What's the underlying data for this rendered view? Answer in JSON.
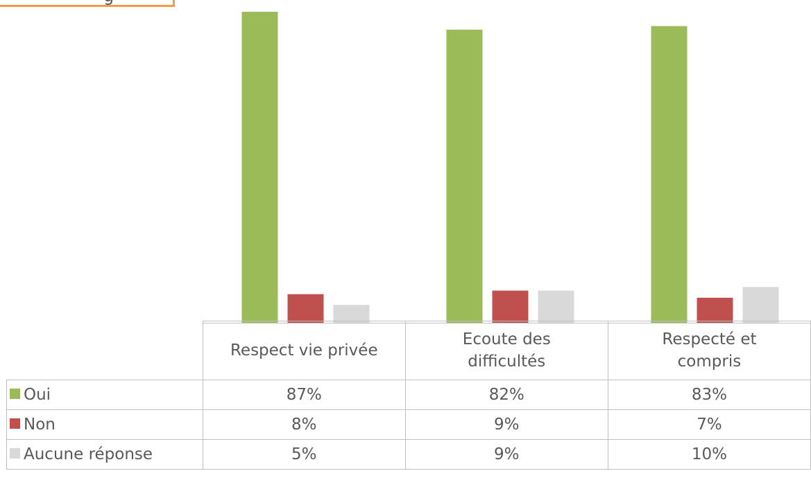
{
  "tag": {
    "text": "g"
  },
  "chart_data": {
    "type": "bar",
    "categories": [
      "Respect vie privée",
      "Ecoute des\ndifficultés",
      "Respecté et\ncompris"
    ],
    "series": [
      {
        "name": "Oui",
        "color": "#9bbb59",
        "values": [
          87,
          82,
          83
        ],
        "labels": [
          "87%",
          "82%",
          "83%"
        ]
      },
      {
        "name": "Non",
        "color": "#c0504d",
        "values": [
          8,
          9,
          7
        ],
        "labels": [
          "8%",
          "9%",
          "7%"
        ]
      },
      {
        "name": "Aucune réponse",
        "color": "#d9d9d9",
        "values": [
          5,
          9,
          10
        ],
        "labels": [
          "5%",
          "9%",
          "10%"
        ]
      }
    ],
    "ylim": [
      0,
      87
    ],
    "legend": "data-table",
    "grid": false
  }
}
